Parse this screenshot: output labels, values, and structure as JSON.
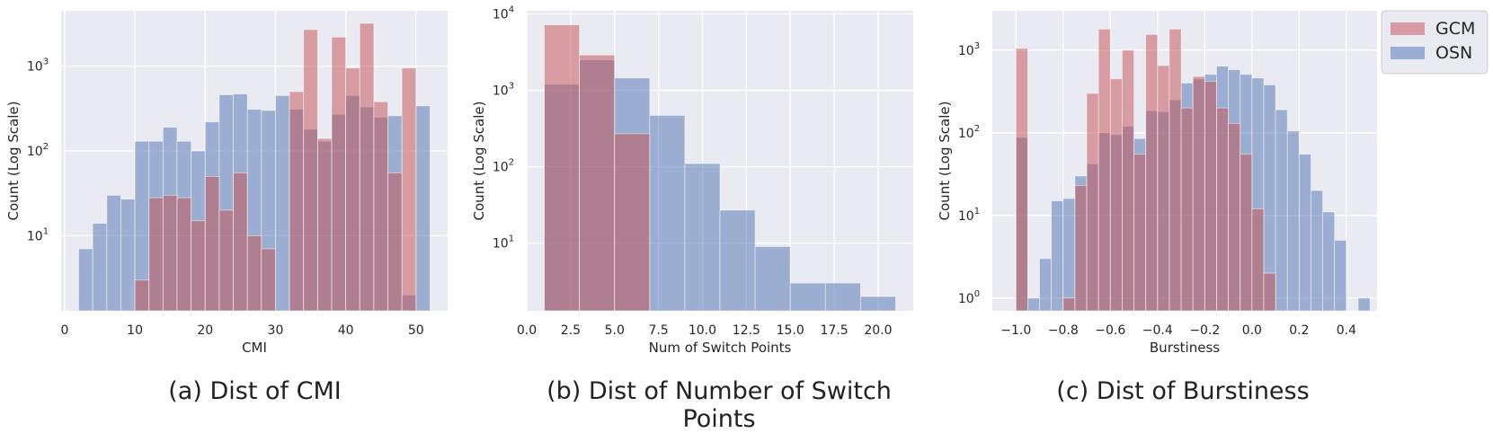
{
  "colors": {
    "gcm": "#c44e52",
    "osn": "#4c72b0",
    "panel_bg": "#eaeaf2",
    "grid": "#ffffff"
  },
  "legend": {
    "items": [
      {
        "label": "GCM",
        "color": "#c44e52"
      },
      {
        "label": "OSN",
        "color": "#4c72b0"
      }
    ],
    "location": "upper right outside panel c"
  },
  "captions": {
    "a": "(a) Dist of CMI",
    "b": "(b) Dist of Number of Switch Points",
    "c": "(c) Dist of Burstiness"
  },
  "chart_data": [
    {
      "id": "a",
      "type": "histogram",
      "title": "(a) Dist of CMI",
      "xlabel": "CMI",
      "ylabel": "Count (Log Scale)",
      "yscale": "log",
      "xlim": [
        -0.5,
        54.5
      ],
      "ylim": [
        1.3,
        4500
      ],
      "xticks": [
        0,
        10,
        20,
        30,
        40,
        50
      ],
      "xtick_labels": [
        "0",
        "10",
        "20",
        "30",
        "40",
        "50"
      ],
      "ytick_labels": [
        {
          "v": 10,
          "label": "10",
          "exp": "1"
        },
        {
          "v": 100,
          "label": "10",
          "exp": "2"
        },
        {
          "v": 1000,
          "label": "10",
          "exp": "3"
        }
      ],
      "bin_width": 2,
      "series": [
        {
          "name": "OSN",
          "color": "#4c72b0",
          "bins": [
            [
              2,
              7
            ],
            [
              4,
              14
            ],
            [
              6,
              30
            ],
            [
              8,
              27
            ],
            [
              10,
              130
            ],
            [
              12,
              130
            ],
            [
              14,
              190
            ],
            [
              16,
              130
            ],
            [
              18,
              100
            ],
            [
              20,
              220
            ],
            [
              22,
              460
            ],
            [
              24,
              470
            ],
            [
              26,
              310
            ],
            [
              28,
              300
            ],
            [
              30,
              450
            ],
            [
              32,
              310
            ],
            [
              34,
              180
            ],
            [
              36,
              130
            ],
            [
              38,
              270
            ],
            [
              40,
              450
            ],
            [
              42,
              330
            ],
            [
              44,
              250
            ],
            [
              46,
              260
            ],
            [
              48,
              2
            ],
            [
              50,
              340
            ]
          ]
        },
        {
          "name": "GCM",
          "color": "#c44e52",
          "bins": [
            [
              10,
              3
            ],
            [
              12,
              28
            ],
            [
              14,
              30
            ],
            [
              16,
              28
            ],
            [
              18,
              15
            ],
            [
              20,
              50
            ],
            [
              22,
              20
            ],
            [
              24,
              55
            ],
            [
              26,
              10
            ],
            [
              28,
              7
            ],
            [
              32,
              500
            ],
            [
              34,
              2700
            ],
            [
              36,
              140
            ],
            [
              38,
              2200
            ],
            [
              40,
              950
            ],
            [
              42,
              3200
            ],
            [
              44,
              380
            ],
            [
              46,
              55
            ],
            [
              48,
              950
            ]
          ]
        }
      ]
    },
    {
      "id": "b",
      "type": "histogram",
      "title": "(b) Dist of Number of Switch Points",
      "xlabel": "Num of Switch Points",
      "ylabel": "Count (Log Scale)",
      "yscale": "log",
      "xlim": [
        0,
        22
      ],
      "ylim": [
        1.3,
        11000
      ],
      "xticks": [
        0,
        2.5,
        5,
        7.5,
        10,
        12.5,
        15,
        17.5,
        20
      ],
      "xtick_labels": [
        "0.0",
        "2.5",
        "5.0",
        "7.5",
        "10.0",
        "12.5",
        "15.0",
        "17.5",
        "20.0"
      ],
      "ytick_labels": [
        {
          "v": 10,
          "label": "10",
          "exp": "1"
        },
        {
          "v": 100,
          "label": "10",
          "exp": "2"
        },
        {
          "v": 1000,
          "label": "10",
          "exp": "3"
        },
        {
          "v": 10000,
          "label": "10",
          "exp": "4"
        }
      ],
      "bin_width": 2,
      "series": [
        {
          "name": "OSN",
          "color": "#4c72b0",
          "bins": [
            [
              1,
              1200
            ],
            [
              3,
              2500
            ],
            [
              5,
              1450
            ],
            [
              7,
              470
            ],
            [
              9,
              110
            ],
            [
              11,
              27
            ],
            [
              13,
              9
            ],
            [
              15,
              3
            ],
            [
              17,
              3
            ],
            [
              19,
              2
            ]
          ]
        },
        {
          "name": "GCM",
          "color": "#c44e52",
          "bins": [
            [
              1,
              7200
            ],
            [
              3,
              2900
            ],
            [
              5,
              270
            ]
          ]
        }
      ]
    },
    {
      "id": "c",
      "type": "histogram",
      "title": "(c) Dist of Burstiness",
      "xlabel": "Burstiness",
      "ylabel": "Count (Log Scale)",
      "yscale": "log",
      "xlim": [
        -1.1,
        0.53
      ],
      "ylim": [
        0.7,
        3000
      ],
      "xticks": [
        -1.0,
        -0.8,
        -0.6,
        -0.4,
        -0.2,
        0.0,
        0.2,
        0.4
      ],
      "xtick_labels": [
        "−1.0",
        "−0.8",
        "−0.6",
        "−0.4",
        "−0.2",
        "0.0",
        "0.2",
        "0.4"
      ],
      "ytick_labels": [
        {
          "v": 1,
          "label": "10",
          "exp": "0"
        },
        {
          "v": 10,
          "label": "10",
          "exp": "1"
        },
        {
          "v": 100,
          "label": "10",
          "exp": "2"
        },
        {
          "v": 1000,
          "label": "10",
          "exp": "3"
        }
      ],
      "bin_width": 0.05,
      "series": [
        {
          "name": "OSN",
          "color": "#4c72b0",
          "bins": [
            [
              -1.0,
              88
            ],
            [
              -0.95,
              1
            ],
            [
              -0.9,
              3
            ],
            [
              -0.85,
              15
            ],
            [
              -0.8,
              16
            ],
            [
              -0.75,
              30
            ],
            [
              -0.7,
              42
            ],
            [
              -0.65,
              100
            ],
            [
              -0.6,
              95
            ],
            [
              -0.55,
              120
            ],
            [
              -0.5,
              85
            ],
            [
              -0.45,
              185
            ],
            [
              -0.4,
              180
            ],
            [
              -0.35,
              250
            ],
            [
              -0.3,
              400
            ],
            [
              -0.25,
              450
            ],
            [
              -0.2,
              510
            ],
            [
              -0.15,
              640
            ],
            [
              -0.1,
              580
            ],
            [
              -0.05,
              510
            ],
            [
              0.0,
              460
            ],
            [
              0.05,
              380
            ],
            [
              0.1,
              190
            ],
            [
              0.15,
              105
            ],
            [
              0.2,
              55
            ],
            [
              0.25,
              20
            ],
            [
              0.3,
              11
            ],
            [
              0.35,
              5
            ],
            [
              0.45,
              1
            ]
          ]
        },
        {
          "name": "GCM",
          "color": "#c44e52",
          "bins": [
            [
              -1.0,
              1050
            ],
            [
              -0.8,
              1
            ],
            [
              -0.75,
              23
            ],
            [
              -0.7,
              300
            ],
            [
              -0.65,
              1800
            ],
            [
              -0.6,
              450
            ],
            [
              -0.55,
              1000
            ],
            [
              -0.5,
              55
            ],
            [
              -0.45,
              1550
            ],
            [
              -0.4,
              650
            ],
            [
              -0.35,
              1800
            ],
            [
              -0.3,
              200
            ],
            [
              -0.25,
              480
            ],
            [
              -0.2,
              420
            ],
            [
              -0.15,
              200
            ],
            [
              -0.1,
              130
            ],
            [
              -0.05,
              55
            ],
            [
              0.0,
              12
            ],
            [
              0.05,
              2
            ]
          ]
        }
      ]
    }
  ]
}
